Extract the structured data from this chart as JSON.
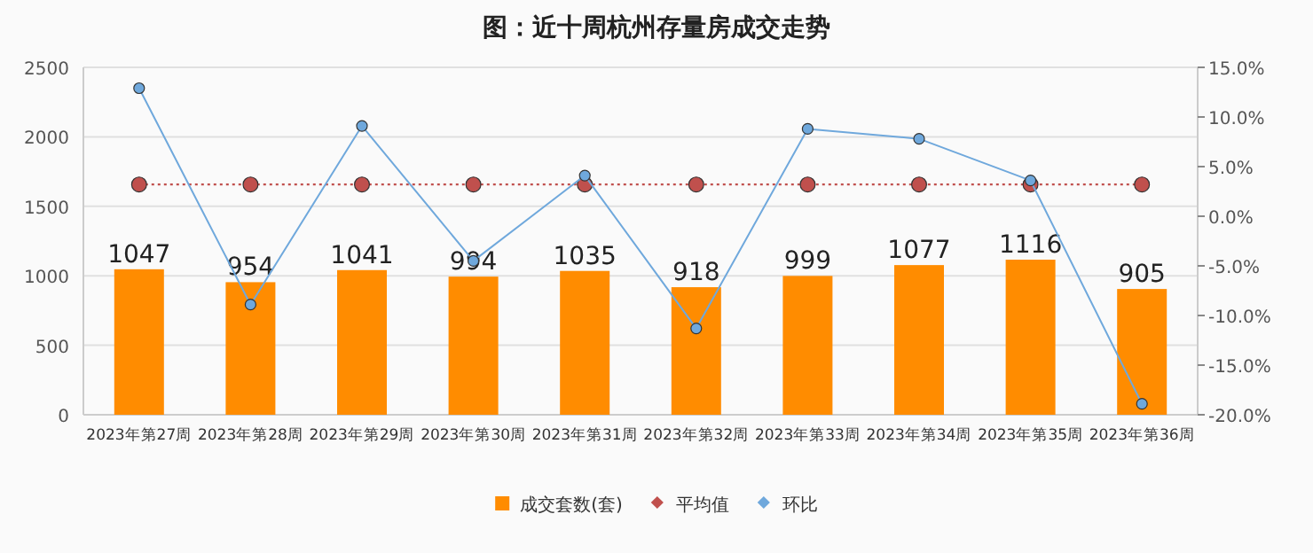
{
  "chart_data": {
    "type": "bar",
    "title": "图：近十周杭州存量房成交走势",
    "categories": [
      "2023年第27周",
      "2023年第28周",
      "2023年第29周",
      "2023年第30周",
      "2023年第31周",
      "2023年第32周",
      "2023年第33周",
      "2023年第34周",
      "2023年第35周",
      "2023年第36周"
    ],
    "series": [
      {
        "name": "成交套数(套)",
        "color": "#ff8c00",
        "values": [
          1047,
          954,
          1041,
          994,
          1035,
          918,
          999,
          1077,
          1116,
          905
        ],
        "data_labels": true
      },
      {
        "name": "平均值",
        "type": "line",
        "axis": "y2",
        "color": "#c0504d",
        "line_style": "dotted",
        "marker": "circle",
        "values": [
          3.2,
          3.2,
          3.2,
          3.2,
          3.2,
          3.2,
          3.2,
          3.2,
          3.2,
          3.2
        ]
      },
      {
        "name": "环比",
        "type": "line",
        "axis": "y2",
        "color": "#6fa8dc",
        "line_style": "solid",
        "marker": "circle",
        "values": [
          12.9,
          -8.9,
          9.1,
          -4.5,
          4.1,
          -11.3,
          8.8,
          7.8,
          3.6,
          -18.9
        ]
      }
    ],
    "ylim": [
      0,
      2500
    ],
    "yticks": [
      0,
      500,
      1000,
      1500,
      2000,
      2500
    ],
    "y2lim": [
      -20,
      15
    ],
    "y2ticks": [
      {
        "value": 15,
        "label": "15.0%"
      },
      {
        "value": 10,
        "label": "10.0%"
      },
      {
        "value": 5,
        "label": "5.0%"
      },
      {
        "value": 0,
        "label": "0.0%"
      },
      {
        "value": -5,
        "label": "-5.0%"
      },
      {
        "value": -10,
        "label": "-10.0%"
      },
      {
        "value": -15,
        "label": "-15.0%"
      },
      {
        "value": -20,
        "label": "-20.0%"
      }
    ],
    "grid": "y",
    "legend": "bottom"
  }
}
